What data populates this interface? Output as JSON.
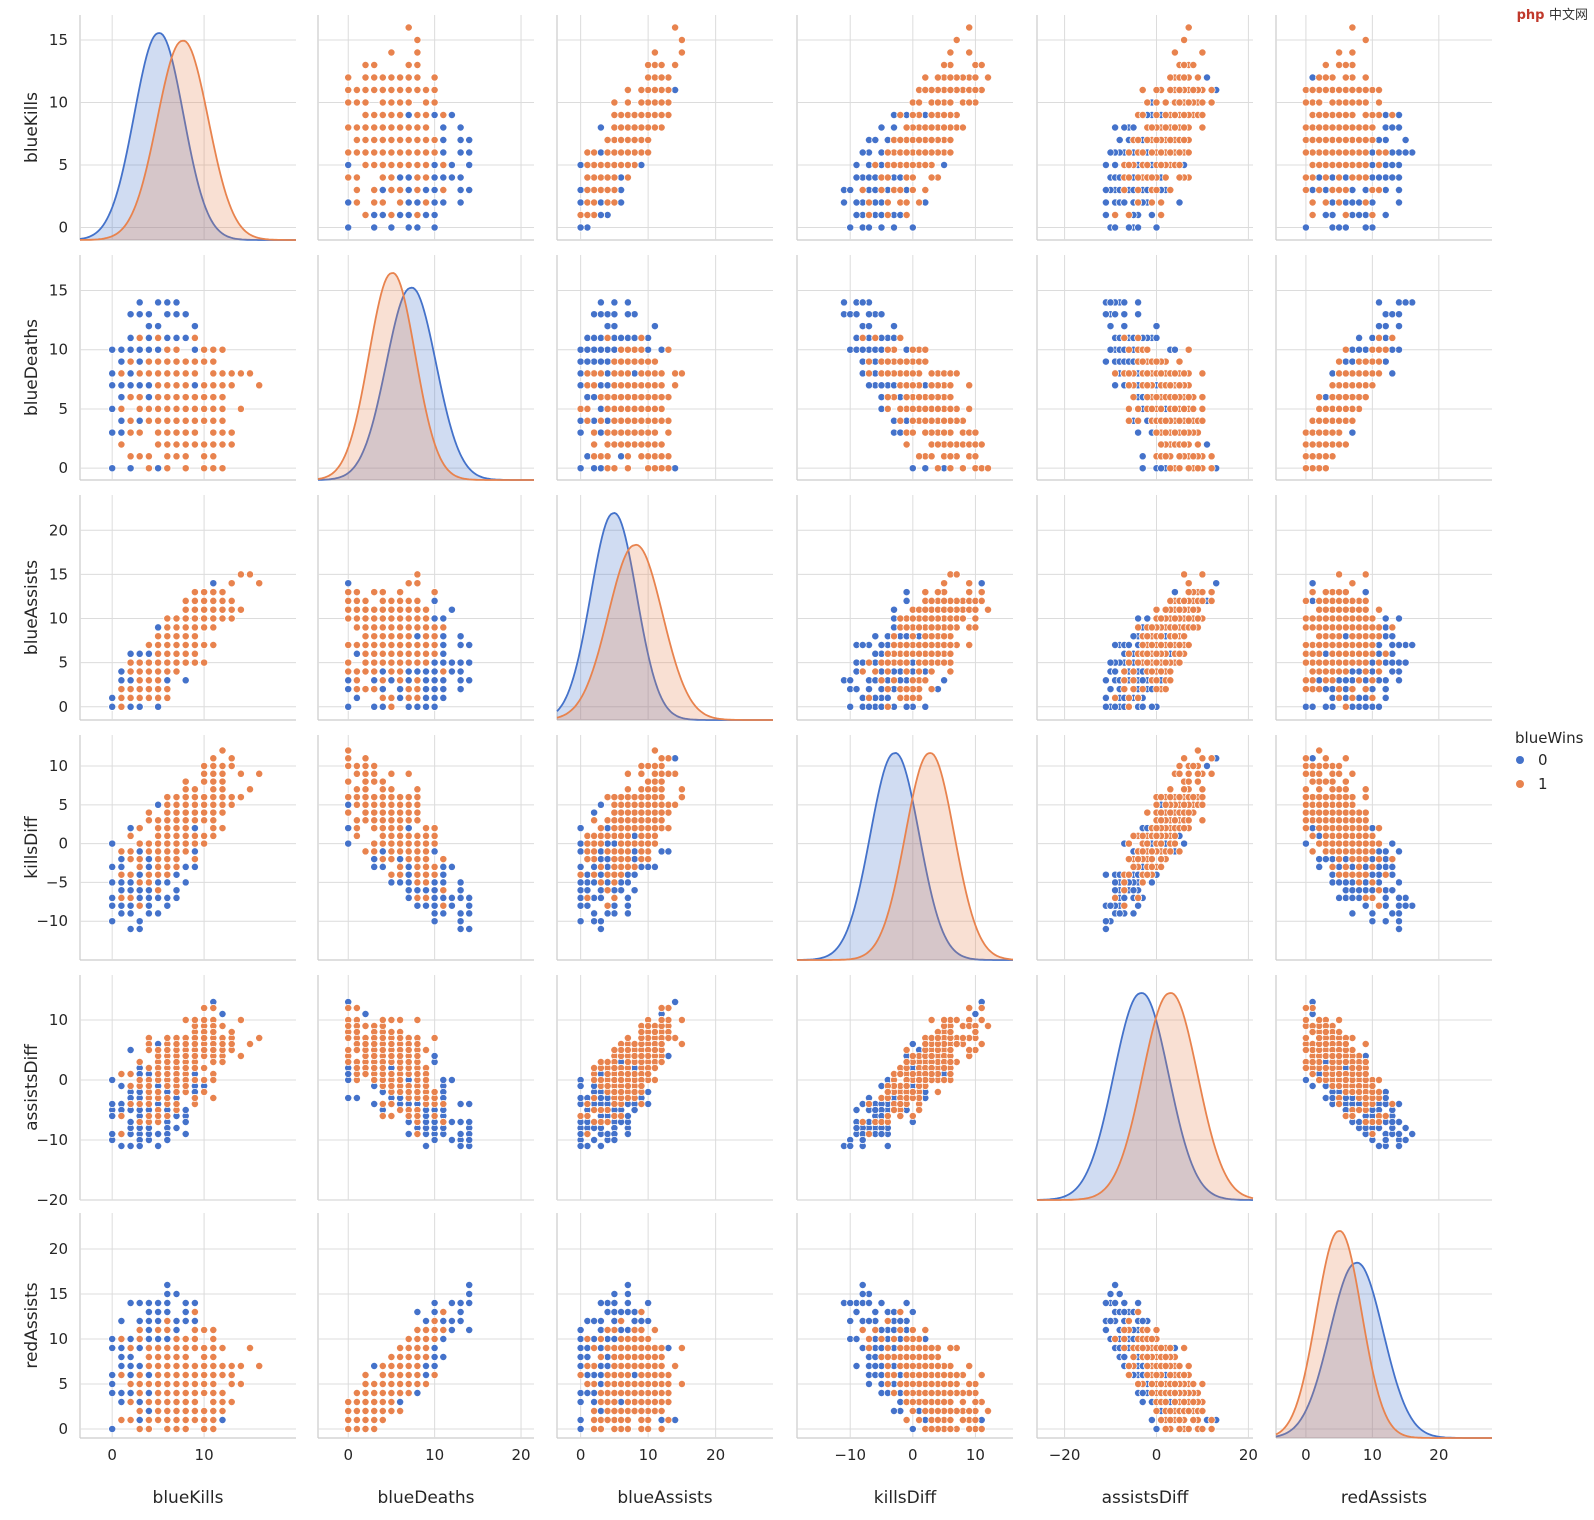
{
  "watermark": {
    "badge": "php",
    "text": "中文网"
  },
  "chart_data": {
    "type": "pairplot",
    "variables": [
      "blueKills",
      "blueDeaths",
      "blueAssists",
      "killsDiff",
      "assistsDiff",
      "redAssists"
    ],
    "hue": "blueWins",
    "legend": {
      "title": "blueWins",
      "placement": "right-center",
      "entries": [
        {
          "label": "0",
          "color": "#4C72B0"
        },
        {
          "label": "1",
          "color": "#DD8452"
        }
      ]
    },
    "colors": {
      "0": "#4472CA",
      "1": "#E8834E"
    },
    "ticks": {
      "blueKills": [
        0,
        10
      ],
      "blueDeaths": [
        0,
        10,
        20
      ],
      "blueAssists": [
        0,
        10,
        20
      ],
      "killsDiff": [
        -10,
        0,
        10
      ],
      "assistsDiff": [
        -20,
        0,
        20
      ],
      "redAssists": [
        0,
        10,
        20
      ]
    },
    "ytick_labels": {
      "blueKills": [
        "0",
        "5",
        "10",
        "15"
      ],
      "blueDeaths": [
        "0",
        "5",
        "10",
        "15"
      ],
      "blueAssists": [
        "0",
        "5",
        "10",
        "15",
        "20"
      ],
      "killsDiff": [
        "−10",
        "−5",
        "0",
        "5",
        "10"
      ],
      "assistsDiff": [
        "−20",
        "−10",
        "0",
        "10"
      ],
      "redAssists": [
        "0",
        "5",
        "10",
        "15",
        "20"
      ]
    },
    "xtick_labels": {
      "blueKills": [
        "0",
        "10"
      ],
      "blueDeaths": [
        "0",
        "10",
        "20"
      ],
      "blueAssists": [
        "0",
        "10",
        "20"
      ],
      "killsDiff": [
        "−10",
        "0",
        "10"
      ],
      "assistsDiff": [
        "−20",
        "0",
        "20"
      ],
      "redAssists": [
        "0",
        "10",
        "20"
      ]
    },
    "distributions": {
      "blueKills": {
        "0": {
          "mean": 5.0,
          "sd": 2.6
        },
        "1": {
          "mean": 7.6,
          "sd": 2.7
        }
      },
      "blueDeaths": {
        "0": {
          "mean": 7.2,
          "sd": 2.8
        },
        "1": {
          "mean": 5.0,
          "sd": 2.6
        }
      },
      "blueAssists": {
        "0": {
          "mean": 4.8,
          "sd": 3.3
        },
        "1": {
          "mean": 8.0,
          "sd": 3.9
        }
      },
      "killsDiff": {
        "0": {
          "mean": -3.0,
          "sd": 3.8
        },
        "1": {
          "mean": 2.6,
          "sd": 3.8
        }
      },
      "assistsDiff": {
        "0": {
          "mean": -3.5,
          "sd": 5.8
        },
        "1": {
          "mean": 2.8,
          "sd": 5.8
        }
      },
      "redAssists": {
        "0": {
          "mean": 7.5,
          "sd": 3.9
        },
        "1": {
          "mean": 4.9,
          "sd": 3.3
        }
      }
    },
    "n_points_per_class": 260
  }
}
